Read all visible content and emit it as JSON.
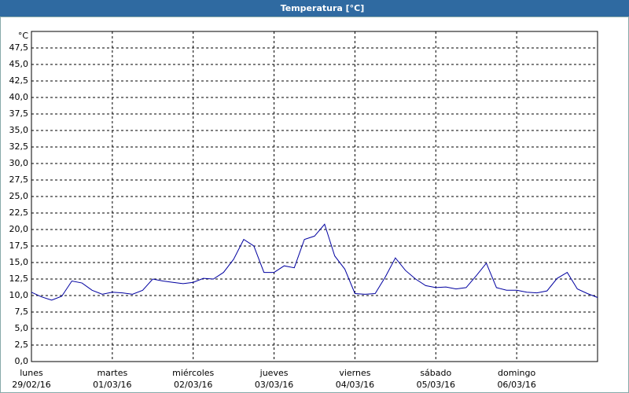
{
  "chart_data": {
    "type": "line",
    "title": "Temperatura [°C]",
    "y_unit": "°C",
    "x": [
      0,
      3,
      6,
      9,
      12,
      15,
      18,
      21,
      24,
      27,
      30,
      33,
      36,
      39,
      42,
      45,
      48,
      51,
      54,
      57,
      60,
      63,
      66,
      69,
      72,
      75,
      78,
      81,
      84,
      87,
      90,
      93,
      96,
      99,
      102,
      105,
      108,
      111,
      114,
      117,
      120,
      123,
      126,
      129,
      132,
      135,
      138,
      141,
      144,
      147,
      150,
      153,
      156,
      159,
      162,
      165,
      168
    ],
    "series": [
      {
        "name": "Temperatura",
        "color": "#0000a0",
        "values": [
          10.5,
          9.8,
          9.3,
          9.9,
          12.2,
          11.9,
          10.8,
          10.2,
          10.5,
          10.4,
          10.2,
          10.8,
          12.5,
          12.2,
          12.0,
          11.8,
          12.0,
          12.6,
          12.5,
          13.5,
          15.5,
          18.5,
          17.5,
          13.5,
          13.5,
          14.5,
          14.2,
          18.5,
          19.0,
          20.8,
          16.0,
          14.0,
          10.3,
          10.2,
          10.3,
          12.8,
          15.7,
          13.8,
          12.5,
          11.5,
          11.2,
          11.3,
          11.0,
          11.2,
          13.0,
          14.9,
          11.2,
          10.8,
          10.8,
          10.5,
          10.4,
          10.7,
          12.6,
          13.5,
          11.0,
          10.3,
          9.7
        ]
      }
    ],
    "xlim": [
      0,
      168
    ],
    "xticks": [
      {
        "value": 0,
        "label": "lunes",
        "date": "29/02/16"
      },
      {
        "value": 24,
        "label": "martes",
        "date": "01/03/16"
      },
      {
        "value": 48,
        "label": "miércoles",
        "date": "02/03/16"
      },
      {
        "value": 72,
        "label": "jueves",
        "date": "03/03/16"
      },
      {
        "value": 96,
        "label": "viernes",
        "date": "04/03/16"
      },
      {
        "value": 120,
        "label": "sábado",
        "date": "05/03/16"
      },
      {
        "value": 144,
        "label": "domingo",
        "date": "06/03/16"
      }
    ],
    "ylim": [
      0,
      50
    ],
    "yticks": [
      {
        "value": 0,
        "label": "0,0"
      },
      {
        "value": 2.5,
        "label": "2,5"
      },
      {
        "value": 5,
        "label": "5,0"
      },
      {
        "value": 7.5,
        "label": "7,5"
      },
      {
        "value": 10,
        "label": "10,0"
      },
      {
        "value": 12.5,
        "label": "12,5"
      },
      {
        "value": 15,
        "label": "15,0"
      },
      {
        "value": 17.5,
        "label": "17,5"
      },
      {
        "value": 20,
        "label": "20,0"
      },
      {
        "value": 22.5,
        "label": "22,5"
      },
      {
        "value": 25,
        "label": "25,0"
      },
      {
        "value": 27.5,
        "label": "27,5"
      },
      {
        "value": 30,
        "label": "30,0"
      },
      {
        "value": 32.5,
        "label": "32,5"
      },
      {
        "value": 35,
        "label": "35,0"
      },
      {
        "value": 37.5,
        "label": "37,5"
      },
      {
        "value": 40,
        "label": "40,0"
      },
      {
        "value": 42.5,
        "label": "42,5"
      },
      {
        "value": 45,
        "label": "45,0"
      },
      {
        "value": 47.5,
        "label": "47,5"
      }
    ],
    "grid": true
  }
}
